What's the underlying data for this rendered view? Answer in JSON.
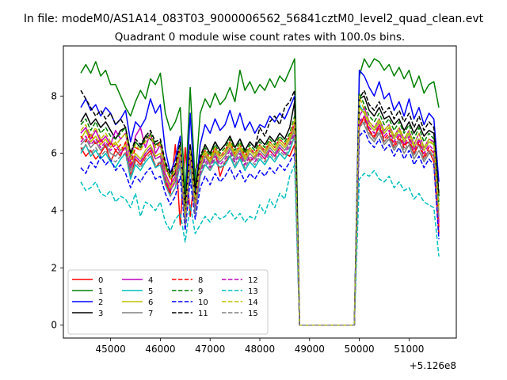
{
  "chart_data": {
    "type": "line",
    "suptitle": "In file: modeM0/AS1A14_083T03_9000006562_56841cztM0_level2_quad_clean.evt",
    "title": "Quadrant 0 module wise count rates with 100.0s bins.",
    "xlabel": "",
    "ylabel": "",
    "x_offset_label": "+5.126e8",
    "xlim": [
      44050,
      51950
    ],
    "ylim": [
      -0.45,
      9.75
    ],
    "x_ticks": [
      45000,
      46000,
      47000,
      48000,
      49000,
      50000,
      51000
    ],
    "x_tick_labels": [
      "45000",
      "46000",
      "47000",
      "48000",
      "49000",
      "50000",
      "51000"
    ],
    "y_ticks": [
      0,
      2,
      4,
      6,
      8
    ],
    "y_tick_labels": [
      "0",
      "2",
      "4",
      "6",
      "8"
    ],
    "x_segments": [
      {
        "start": 44400,
        "step": 100,
        "count": 44
      },
      {
        "start": 49900,
        "step": 100,
        "count": 18
      }
    ],
    "legend": {
      "placement": "lower-left",
      "columns": 4
    },
    "series": [
      {
        "name": "0",
        "color": "#ff0000",
        "dash": "solid",
        "seg_a": [
          6.2,
          5.9,
          6.1,
          5.8,
          6.0,
          6.3,
          5.7,
          6.1,
          5.9,
          6.4,
          5.2,
          5.8,
          5.6,
          5.9,
          6.1,
          5.5,
          5.7,
          5.0,
          4.6,
          6.3,
          3.5,
          6.2,
          3.8,
          5.4,
          5.8,
          6.0,
          5.6,
          6.1,
          5.2,
          5.7,
          5.9,
          5.5,
          5.8,
          6.1,
          5.7,
          5.9,
          6.0,
          5.8,
          6.1,
          5.9,
          6.2,
          6.0,
          5.9,
          6.3
        ],
        "seg_b": [
          0,
          6.9,
          7.3,
          6.8,
          6.5,
          7.0,
          6.4,
          6.6,
          6.2,
          6.5,
          6.3,
          6.4,
          6.0,
          6.3,
          5.8,
          6.1,
          5.7,
          3.2
        ]
      },
      {
        "name": "1",
        "color": "#008000",
        "dash": "solid",
        "seg_a": [
          8.8,
          9.1,
          8.8,
          9.2,
          8.7,
          8.9,
          8.4,
          8.4,
          8.0,
          7.6,
          7.3,
          7.8,
          8.2,
          7.9,
          8.6,
          8.4,
          8.8,
          7.4,
          6.8,
          7.1,
          7.6,
          4.6,
          8.3,
          5.0,
          7.4,
          7.9,
          7.6,
          8.1,
          7.7,
          7.9,
          8.3,
          7.8,
          8.9,
          8.2,
          8.5,
          8.1,
          8.4,
          8.2,
          8.6,
          8.3,
          8.7,
          8.5,
          8.9,
          9.3
        ],
        "seg_b": [
          0,
          8.7,
          9.3,
          9.0,
          9.3,
          9.2,
          8.9,
          9.1,
          8.7,
          9.0,
          8.6,
          8.9,
          8.3,
          8.7,
          8.1,
          8.4,
          8.5,
          7.6
        ]
      },
      {
        "name": "2",
        "color": "#0000ff",
        "dash": "solid",
        "seg_a": [
          7.6,
          7.9,
          7.5,
          7.7,
          7.3,
          7.6,
          7.4,
          7.0,
          7.2,
          7.5,
          6.4,
          7.1,
          6.9,
          7.2,
          7.9,
          7.4,
          7.7,
          6.1,
          5.3,
          5.8,
          6.6,
          4.0,
          7.4,
          4.5,
          6.3,
          7.0,
          6.7,
          7.2,
          6.8,
          7.0,
          7.5,
          6.9,
          7.4,
          6.8,
          7.1,
          6.7,
          7.0,
          6.9,
          7.3,
          7.1,
          7.4,
          7.2,
          7.6,
          8.0
        ],
        "seg_b": [
          0,
          8.9,
          8.7,
          8.3,
          8.0,
          8.5,
          7.9,
          8.1,
          7.5,
          7.8,
          7.3,
          7.9,
          7.2,
          7.6,
          7.0,
          7.4,
          7.2,
          5.0
        ]
      },
      {
        "name": "3",
        "color": "#000000",
        "dash": "solid",
        "seg_a": [
          7.1,
          7.4,
          7.0,
          7.2,
          6.9,
          7.1,
          6.8,
          6.5,
          6.8,
          6.9,
          6.0,
          6.4,
          6.2,
          6.6,
          6.5,
          6.3,
          6.4,
          5.6,
          5.1,
          5.3,
          6.3,
          4.2,
          6.3,
          4.8,
          5.8,
          6.3,
          6.0,
          6.4,
          6.1,
          6.3,
          6.6,
          6.2,
          6.5,
          6.1,
          6.4,
          6.2,
          6.5,
          6.3,
          6.6,
          6.4,
          6.7,
          6.5,
          6.9,
          7.8
        ],
        "seg_b": [
          0,
          7.9,
          8.0,
          7.5,
          7.3,
          7.6,
          7.2,
          7.3,
          7.0,
          7.2,
          6.8,
          7.1,
          6.7,
          7.0,
          6.6,
          6.8,
          6.7,
          4.5
        ]
      },
      {
        "name": "4",
        "color": "#bf00bf",
        "dash": "solid",
        "seg_a": [
          6.7,
          6.9,
          6.5,
          6.8,
          6.4,
          6.6,
          6.3,
          6.8,
          6.5,
          6.7,
          5.7,
          6.6,
          6.9,
          6.2,
          6.7,
          6.0,
          6.3,
          5.3,
          4.9,
          5.2,
          6.1,
          3.7,
          6.0,
          4.2,
          5.6,
          6.1,
          5.8,
          6.2,
          5.9,
          6.0,
          6.4,
          5.9,
          6.2,
          5.8,
          6.1,
          6.0,
          6.3,
          6.0,
          6.4,
          6.2,
          6.5,
          6.3,
          6.6,
          7.0
        ],
        "seg_b": [
          0,
          7.3,
          7.6,
          7.1,
          6.9,
          7.2,
          6.8,
          7.0,
          6.6,
          6.9,
          6.5,
          6.8,
          6.3,
          6.7,
          6.2,
          6.5,
          6.4,
          3.6
        ]
      },
      {
        "name": "5",
        "color": "#00bfbf",
        "dash": "solid",
        "seg_a": [
          6.0,
          6.3,
          5.9,
          6.1,
          5.8,
          6.0,
          5.7,
          5.5,
          5.8,
          6.0,
          5.1,
          5.6,
          5.4,
          5.7,
          5.9,
          5.5,
          5.6,
          4.9,
          4.5,
          4.8,
          5.6,
          3.5,
          5.5,
          3.9,
          5.2,
          5.6,
          5.4,
          5.7,
          5.5,
          5.6,
          5.9,
          5.5,
          5.8,
          5.4,
          5.7,
          5.5,
          5.8,
          5.6,
          5.9,
          5.7,
          6.0,
          5.8,
          6.1,
          6.6
        ],
        "seg_b": [
          0,
          7.7,
          7.4,
          7.0,
          6.8,
          7.1,
          6.7,
          6.9,
          6.5,
          6.8,
          6.4,
          6.7,
          6.2,
          6.5,
          6.1,
          6.4,
          6.3,
          4.3
        ]
      },
      {
        "name": "6",
        "color": "#bfbf00",
        "dash": "solid",
        "seg_a": [
          6.5,
          6.8,
          6.4,
          6.6,
          6.3,
          6.5,
          6.2,
          6.4,
          6.1,
          6.3,
          5.5,
          6.0,
          5.8,
          6.1,
          6.3,
          5.9,
          6.0,
          5.2,
          4.8,
          5.1,
          6.0,
          3.7,
          5.9,
          4.1,
          5.5,
          6.0,
          5.7,
          6.1,
          5.8,
          6.0,
          6.3,
          5.9,
          6.2,
          5.8,
          6.1,
          5.9,
          6.2,
          6.0,
          6.3,
          6.1,
          6.4,
          6.2,
          6.5,
          6.9
        ],
        "seg_b": [
          0,
          7.6,
          7.4,
          7.0,
          6.8,
          7.1,
          6.7,
          6.9,
          6.5,
          6.8,
          6.4,
          6.7,
          6.2,
          6.5,
          6.1,
          6.4,
          6.3,
          4.0
        ]
      },
      {
        "name": "7",
        "color": "#808080",
        "dash": "solid",
        "seg_a": [
          6.3,
          6.5,
          6.2,
          6.4,
          6.1,
          6.3,
          6.0,
          5.9,
          6.1,
          6.2,
          5.4,
          5.9,
          5.7,
          6.0,
          6.2,
          5.8,
          5.9,
          5.1,
          4.7,
          5.0,
          5.9,
          3.6,
          5.8,
          4.0,
          5.4,
          5.9,
          5.6,
          6.0,
          5.7,
          5.9,
          6.2,
          5.8,
          6.1,
          5.7,
          6.0,
          5.8,
          6.1,
          5.9,
          6.2,
          6.0,
          6.3,
          6.1,
          6.4,
          6.8
        ],
        "seg_b": [
          0,
          7.2,
          7.0,
          6.6,
          6.4,
          6.7,
          6.3,
          6.5,
          6.1,
          6.4,
          6.0,
          6.3,
          5.8,
          6.1,
          5.7,
          6.0,
          5.9,
          3.8
        ]
      },
      {
        "name": "8",
        "color": "#ff0000",
        "dash": "dashed",
        "seg_a": [
          6.6,
          6.4,
          6.7,
          6.3,
          6.5,
          6.2,
          6.4,
          6.1,
          6.3,
          6.0,
          5.6,
          6.2,
          6.1,
          6.5,
          6.7,
          6.2,
          6.4,
          5.5,
          5.1,
          5.4,
          6.2,
          3.8,
          6.1,
          4.3,
          5.7,
          6.1,
          5.8,
          6.2,
          5.9,
          6.1,
          6.4,
          6.0,
          6.3,
          5.9,
          6.2,
          6.0,
          6.3,
          6.1,
          6.4,
          6.2,
          6.5,
          6.3,
          6.6,
          7.1
        ],
        "seg_b": [
          0,
          7.0,
          7.2,
          6.8,
          6.6,
          6.9,
          6.5,
          6.7,
          6.3,
          6.6,
          6.2,
          6.5,
          6.0,
          6.4,
          5.9,
          6.2,
          6.0,
          3.4
        ]
      },
      {
        "name": "9",
        "color": "#008000",
        "dash": "dashed",
        "seg_a": [
          7.0,
          7.2,
          6.8,
          7.1,
          6.7,
          6.9,
          6.6,
          6.5,
          6.7,
          6.9,
          5.9,
          6.4,
          6.2,
          6.5,
          6.7,
          6.3,
          6.4,
          5.6,
          5.2,
          5.5,
          6.3,
          3.9,
          6.2,
          4.4,
          5.8,
          6.2,
          5.9,
          6.3,
          6.0,
          6.2,
          6.5,
          6.1,
          6.4,
          6.0,
          6.3,
          6.1,
          6.4,
          6.2,
          6.5,
          6.3,
          6.6,
          6.4,
          6.7,
          7.3
        ],
        "seg_b": [
          0,
          8.1,
          7.7,
          7.3,
          7.1,
          7.4,
          7.0,
          7.2,
          6.8,
          7.1,
          6.7,
          7.0,
          6.5,
          6.9,
          6.4,
          6.7,
          6.5,
          4.2
        ]
      },
      {
        "name": "10",
        "color": "#0000ff",
        "dash": "dashed",
        "seg_a": [
          5.5,
          5.3,
          5.7,
          5.5,
          5.9,
          5.6,
          5.8,
          5.4,
          5.6,
          5.3,
          4.8,
          5.2,
          5.0,
          5.3,
          5.5,
          5.1,
          5.2,
          4.6,
          4.2,
          4.5,
          5.2,
          3.3,
          5.1,
          3.7,
          4.8,
          5.2,
          4.9,
          5.3,
          5.0,
          5.2,
          5.5,
          5.1,
          5.4,
          5.0,
          5.3,
          5.1,
          5.4,
          5.2,
          5.5,
          5.3,
          5.6,
          5.4,
          5.7,
          6.0
        ],
        "seg_b": [
          0,
          6.6,
          6.8,
          6.4,
          6.2,
          6.5,
          6.1,
          6.3,
          5.9,
          6.2,
          5.8,
          6.1,
          5.6,
          5.9,
          5.5,
          5.8,
          5.6,
          3.0
        ]
      },
      {
        "name": "11",
        "color": "#000000",
        "dash": "dashed",
        "seg_a": [
          8.2,
          7.9,
          7.6,
          7.3,
          7.5,
          7.2,
          7.4,
          7.0,
          7.2,
          6.9,
          6.0,
          6.5,
          6.3,
          6.6,
          6.8,
          6.4,
          6.5,
          5.7,
          5.3,
          5.6,
          6.4,
          4.0,
          6.3,
          4.4,
          5.9,
          6.3,
          6.0,
          6.4,
          6.1,
          6.3,
          6.6,
          6.2,
          6.5,
          6.1,
          6.4,
          6.2,
          6.9,
          6.6,
          7.1,
          7.3,
          7.0,
          7.6,
          7.8,
          8.2
        ],
        "seg_b": [
          0,
          7.9,
          8.2,
          7.7,
          7.5,
          7.8,
          7.4,
          7.6,
          7.2,
          7.5,
          7.1,
          7.4,
          6.9,
          7.3,
          6.8,
          7.1,
          6.9,
          4.6
        ]
      },
      {
        "name": "12",
        "color": "#bf00bf",
        "dash": "dashed",
        "seg_a": [
          6.4,
          6.6,
          6.3,
          6.5,
          6.2,
          6.4,
          6.1,
          6.3,
          6.0,
          6.2,
          5.5,
          5.9,
          5.7,
          6.0,
          6.2,
          5.8,
          5.9,
          5.1,
          4.7,
          5.0,
          5.8,
          3.6,
          5.7,
          4.0,
          5.3,
          5.8,
          5.5,
          5.9,
          5.6,
          5.8,
          6.1,
          5.7,
          6.0,
          5.6,
          5.9,
          5.7,
          6.0,
          5.8,
          6.1,
          5.9,
          6.2,
          6.0,
          6.3,
          6.7
        ],
        "seg_b": [
          0,
          7.1,
          7.3,
          6.9,
          6.7,
          7.0,
          6.6,
          6.8,
          6.4,
          6.7,
          6.3,
          6.6,
          6.1,
          6.5,
          6.0,
          6.3,
          6.1,
          3.5
        ]
      },
      {
        "name": "13",
        "color": "#00bfbf",
        "dash": "dashed",
        "seg_a": [
          5.0,
          4.7,
          4.8,
          5.0,
          4.6,
          4.5,
          4.7,
          4.3,
          4.5,
          4.4,
          4.1,
          4.6,
          3.8,
          4.3,
          4.2,
          4.0,
          4.3,
          3.6,
          3.3,
          3.7,
          3.9,
          2.9,
          4.2,
          3.2,
          3.5,
          3.8,
          3.6,
          3.9,
          3.7,
          3.8,
          4.0,
          3.7,
          3.9,
          3.6,
          3.8,
          3.7,
          4.2,
          3.9,
          4.4,
          4.1,
          4.6,
          4.4,
          5.2,
          5.6
        ],
        "seg_b": [
          0,
          5.1,
          5.3,
          5.2,
          5.4,
          5.1,
          5.0,
          5.2,
          4.8,
          5.0,
          4.7,
          4.8,
          4.4,
          4.6,
          4.3,
          4.2,
          4.1,
          2.4
        ]
      },
      {
        "name": "14",
        "color": "#bfbf00",
        "dash": "dashed",
        "seg_a": [
          6.8,
          7.0,
          6.6,
          6.9,
          6.5,
          6.7,
          6.4,
          6.3,
          6.5,
          6.7,
          5.8,
          6.3,
          6.1,
          6.4,
          6.6,
          6.2,
          6.3,
          5.5,
          5.1,
          5.4,
          6.2,
          3.8,
          6.1,
          4.3,
          5.7,
          6.1,
          5.8,
          6.2,
          5.9,
          6.1,
          6.4,
          6.0,
          6.3,
          5.9,
          6.2,
          6.0,
          6.3,
          6.1,
          6.4,
          6.2,
          6.5,
          6.3,
          6.6,
          7.2
        ],
        "seg_b": [
          0,
          8.0,
          7.5,
          7.1,
          6.9,
          7.2,
          6.8,
          7.0,
          6.6,
          6.9,
          6.5,
          6.8,
          6.3,
          6.7,
          6.2,
          6.5,
          6.3,
          4.1
        ]
      },
      {
        "name": "15",
        "color": "#808080",
        "dash": "dashed",
        "seg_a": [
          6.1,
          6.3,
          6.0,
          6.2,
          5.9,
          6.1,
          5.8,
          5.7,
          5.9,
          6.0,
          5.2,
          5.7,
          5.5,
          5.8,
          6.0,
          5.6,
          5.7,
          4.9,
          4.5,
          4.8,
          5.7,
          3.5,
          5.6,
          3.9,
          5.2,
          5.7,
          5.4,
          5.8,
          5.5,
          5.7,
          6.0,
          5.6,
          5.9,
          5.5,
          5.8,
          5.6,
          5.9,
          5.7,
          6.0,
          5.8,
          6.1,
          5.9,
          6.2,
          6.6
        ],
        "seg_b": [
          0,
          6.9,
          7.1,
          6.7,
          6.5,
          6.8,
          6.4,
          6.6,
          6.2,
          6.5,
          6.1,
          6.4,
          5.9,
          6.3,
          5.8,
          6.1,
          5.9,
          3.7
        ]
      }
    ]
  }
}
